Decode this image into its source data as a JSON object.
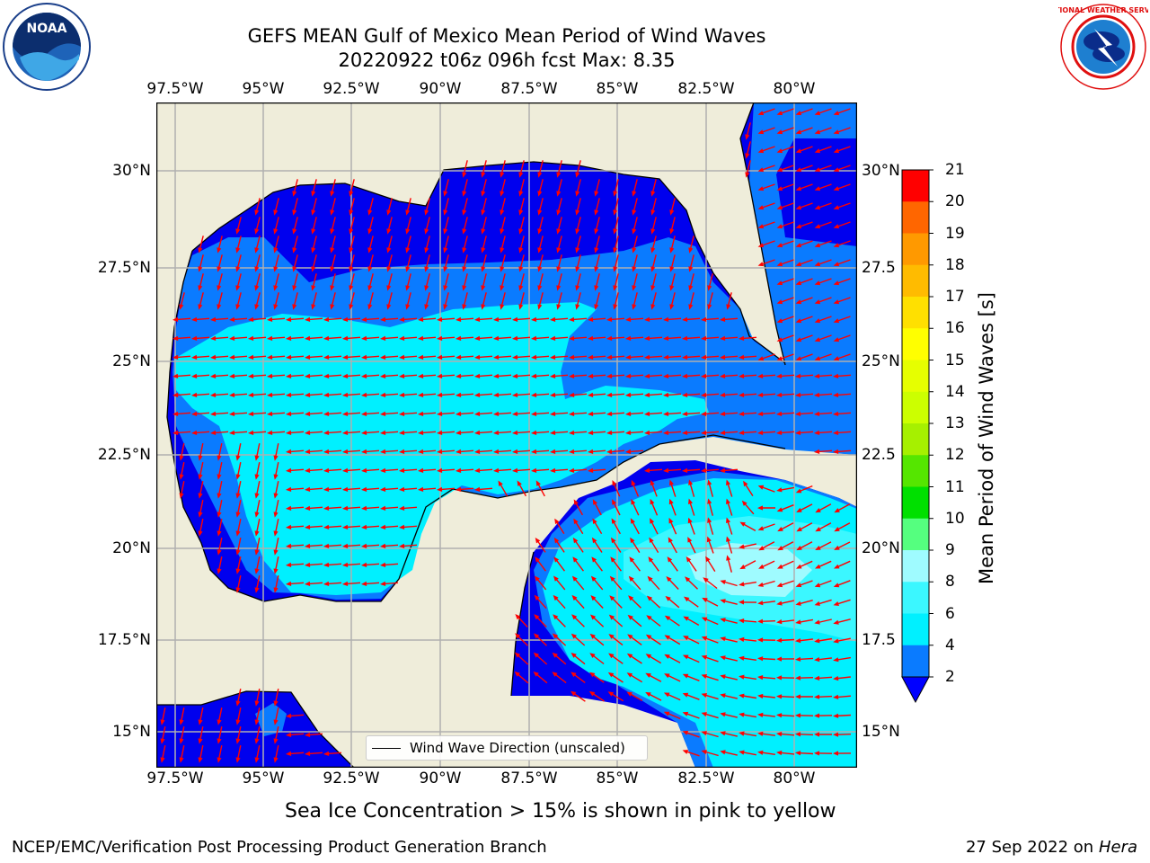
{
  "title_line1": "GEFS MEAN Gulf of Mexico Mean Period of Wind Waves",
  "title_line2": "20220922 t06z 096h fcst   Max: 8.35",
  "lon_ticks": [
    "97.5°W",
    "95°W",
    "92.5°W",
    "90°W",
    "87.5°W",
    "85°W",
    "82.5°W",
    "80°W"
  ],
  "lat_ticks_left": [
    "30°N",
    "27.5°N",
    "25°N",
    "22.5°N",
    "20°N",
    "17.5°N",
    "15°N"
  ],
  "lat_ticks_right": [
    "30°N",
    "27.5",
    "25°N",
    "22.5",
    "20°N",
    "17.5",
    "15°N"
  ],
  "colorbar": {
    "title": "Mean Period of Wind Waves [s]",
    "levels": [
      "2",
      "4",
      "6",
      "8",
      "9",
      "10",
      "11",
      "12",
      "13",
      "14",
      "15",
      "16",
      "17",
      "18",
      "19",
      "20",
      "21"
    ],
    "colors": [
      "#0a7bff",
      "#00f0ff",
      "#3bf7ff",
      "#9ffbff",
      "#55ff7f",
      "#00e000",
      "#55e600",
      "#a6f000",
      "#ccff00",
      "#e6ff00",
      "#ffff00",
      "#ffe000",
      "#ffbb00",
      "#ff9900",
      "#ff6600",
      "#ff3300",
      "#ff0000"
    ],
    "under_color": "#0000ff"
  },
  "legend_label": "Wind Wave Direction (unscaled)",
  "sea_ice_note": "Sea Ice Concentration > 15% is shown in pink to yellow",
  "footer_left": "NCEP/EMC/Verification Post Processing Product Generation Branch",
  "footer_right_date": "27 Sep 2022 on",
  "footer_right_host": "Hera",
  "logos": {
    "left": "NOAA",
    "right": "NATIONAL WEATHER SERVICE"
  },
  "map_colors": {
    "land": "#efedda",
    "ocean_period_lt2": "#0000ee",
    "period_2_4": "#0a7bff",
    "period_4_6": "#00f0ff",
    "period_6_8": "#3bf7ff",
    "period_8_9": "#9ffbff",
    "arrow": "#ff0000",
    "grid": "#b0b0b0"
  }
}
